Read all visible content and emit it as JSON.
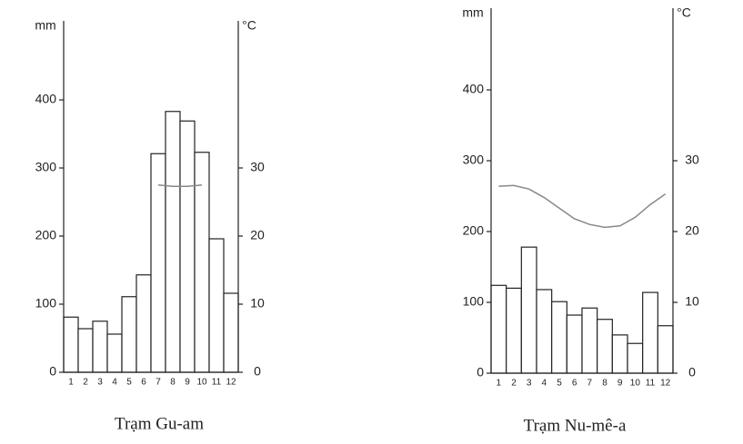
{
  "chart_data": [
    {
      "type": "bar",
      "title": "Trạm Gu-am",
      "y_label": "mm",
      "y2_label": "°C",
      "categories": [
        "1",
        "2",
        "3",
        "4",
        "5",
        "6",
        "7",
        "8",
        "9",
        "10",
        "11",
        "12"
      ],
      "series": [
        {
          "color": "#ffffff",
          "values": [
            81,
            64,
            75,
            56,
            111,
            143,
            321,
            383,
            369,
            323,
            196,
            116
          ]
        },
        {
          "type": "line",
          "axis": "y2",
          "color": "#888888",
          "values": [
            null,
            null,
            null,
            null,
            null,
            null,
            27.5,
            27.3,
            27.3,
            27.5,
            null,
            null
          ]
        }
      ],
      "ylim": [
        0,
        500
      ],
      "yticks": [
        0,
        100,
        200,
        300,
        400
      ],
      "y2lim": [
        0,
        50
      ],
      "y2ticks": [
        0,
        10,
        20,
        30
      ]
    },
    {
      "type": "bar",
      "title": "Trạm Nu-mê-a",
      "y_label": "mm",
      "y2_label": "°C",
      "categories": [
        "1",
        "2",
        "3",
        "4",
        "5",
        "6",
        "7",
        "8",
        "9",
        "10",
        "11",
        "12"
      ],
      "series": [
        {
          "color": "#ffffff",
          "values": [
            124,
            120,
            178,
            118,
            101,
            82,
            92,
            76,
            54,
            42,
            114,
            67
          ]
        },
        {
          "type": "line",
          "axis": "y2",
          "color": "#888888",
          "values": [
            26.4,
            26.5,
            26,
            24.8,
            23.3,
            21.8,
            21,
            20.6,
            20.8,
            22,
            23.8,
            25.3
          ]
        }
      ],
      "ylim": [
        0,
        500
      ],
      "yticks": [
        0,
        100,
        200,
        300,
        400
      ],
      "y2lim": [
        0,
        50
      ],
      "y2ticks": [
        0,
        10,
        20,
        30
      ]
    }
  ]
}
